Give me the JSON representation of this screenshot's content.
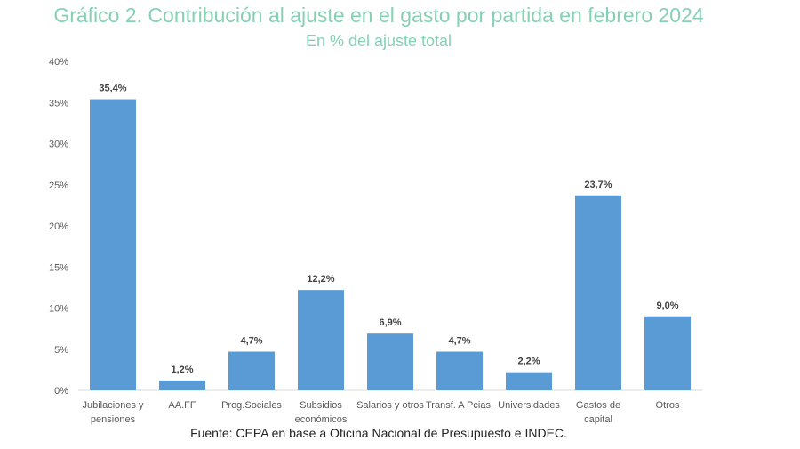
{
  "chart_data": {
    "type": "bar",
    "title": "Gráfico 2. Contribución al ajuste en el gasto por partida en febrero 2024",
    "subtitle": "En % del ajuste total",
    "source": "Fuente: CEPA en base a Oficina Nacional de Presupuesto e INDEC.",
    "categories": [
      [
        "Jubilaciones y",
        "pensiones"
      ],
      [
        "AA.FF"
      ],
      [
        "Prog.Sociales"
      ],
      [
        "Subsidios",
        "económicos"
      ],
      [
        "Salarios y otros"
      ],
      [
        "Transf. A Pcias."
      ],
      [
        "Universidades"
      ],
      [
        "Gastos de",
        "capital"
      ],
      [
        "Otros"
      ]
    ],
    "values": [
      35.4,
      1.2,
      4.7,
      12.2,
      6.9,
      4.7,
      2.2,
      23.7,
      9.0
    ],
    "data_labels": [
      "35,4%",
      "1,2%",
      "4,7%",
      "12,2%",
      "6,9%",
      "4,7%",
      "2,2%",
      "23,7%",
      "9,0%"
    ],
    "yticks": [
      "0%",
      "5%",
      "10%",
      "15%",
      "20%",
      "25%",
      "30%",
      "35%",
      "40%"
    ],
    "ylim": [
      0,
      40
    ],
    "xlabel": "",
    "ylabel": "",
    "grid": false,
    "legend": "none",
    "bar_color": "#5b9bd5",
    "title_color": "#86d1b3"
  }
}
